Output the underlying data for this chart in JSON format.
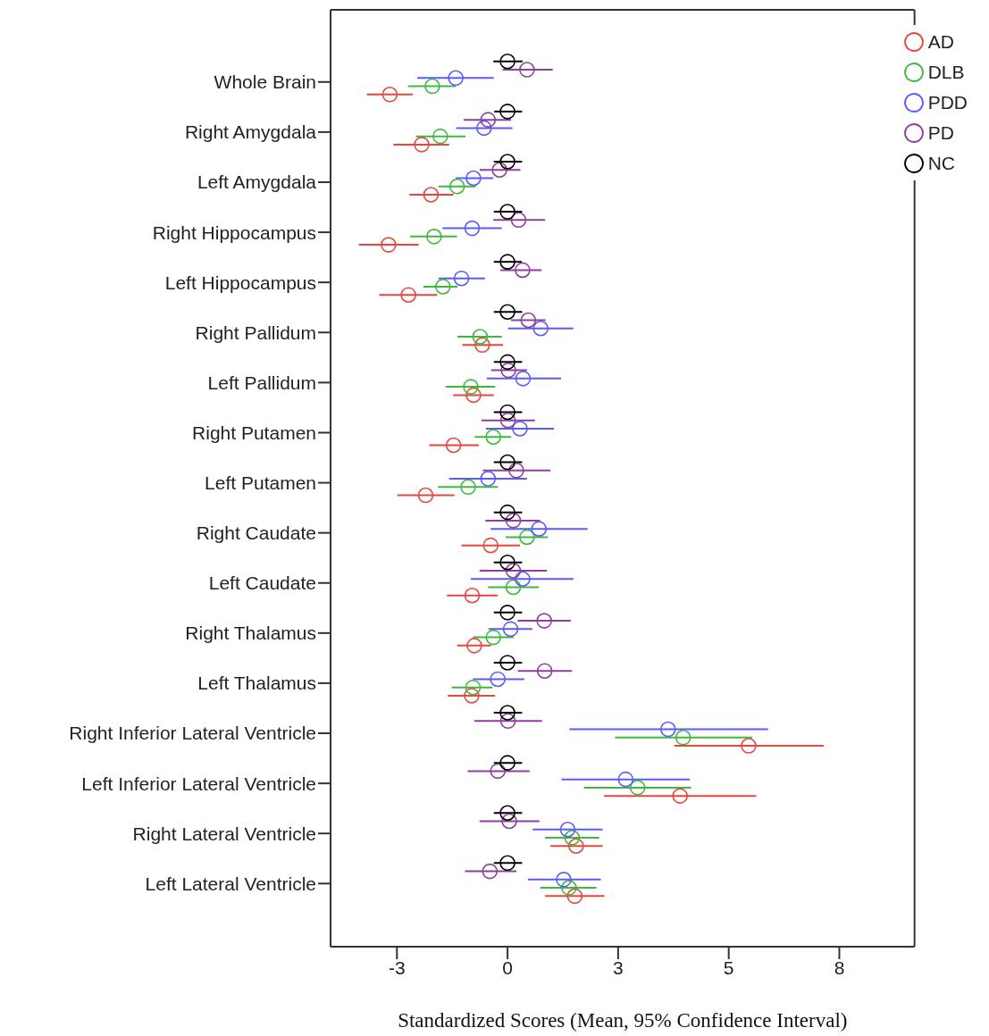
{
  "chart_data": {
    "type": "scatter",
    "orientation": "horizontal",
    "xlabel": "Standardized Scores (Mean, 95% Confidence Interval)",
    "categories": [
      "Whole Brain",
      "Right Amygdala",
      "Left Amygdala",
      "Right Hippocampus",
      "Left Hippocampus",
      "Right Pallidum",
      "Left Pallidum",
      "Right Putamen",
      "Left Putamen",
      "Right Caudate",
      "Left Caudate",
      "Right Thalamus",
      "Left Thalamus",
      "Right Inferior Lateral Ventricle",
      "Left Inferior Lateral Ventricle",
      "Right Lateral Ventricle",
      "Left Lateral Ventricle"
    ],
    "xlim": [
      -4,
      9.2
    ],
    "xticks": [
      {
        "value": -2.5,
        "label": "-3"
      },
      {
        "value": 0,
        "label": "0"
      },
      {
        "value": 2.5,
        "label": "3"
      },
      {
        "value": 5,
        "label": "5"
      },
      {
        "value": 7.5,
        "label": "8"
      }
    ],
    "legend": "top right",
    "marker": "circle",
    "series": [
      {
        "name": "AD",
        "color": "#e8453c",
        "values": [
          -2.66,
          -1.94,
          -1.73,
          -2.69,
          -2.24,
          -0.57,
          -0.77,
          -1.22,
          -1.85,
          -0.38,
          -0.8,
          -0.75,
          -0.81,
          5.45,
          3.9,
          1.55,
          1.52
        ],
        "errors": [
          [
            -3.18,
            -2.14
          ],
          [
            -2.58,
            -1.32
          ],
          [
            -2.22,
            -1.22
          ],
          [
            -3.36,
            -2.01
          ],
          [
            -2.9,
            -1.59
          ],
          [
            -1.02,
            -0.1
          ],
          [
            -1.23,
            -0.31
          ],
          [
            -1.77,
            -0.65
          ],
          [
            -2.49,
            -1.2
          ],
          [
            -1.04,
            0.28
          ],
          [
            -1.37,
            -0.22
          ],
          [
            -1.14,
            -0.37
          ],
          [
            -1.35,
            -0.28
          ],
          [
            3.77,
            7.15
          ],
          [
            2.18,
            5.62
          ],
          [
            0.97,
            2.15
          ],
          [
            0.85,
            2.19
          ]
        ]
      },
      {
        "name": "DLB",
        "color": "#3dba3d",
        "values": [
          -1.7,
          -1.52,
          -1.14,
          -1.66,
          -1.46,
          -0.62,
          -0.83,
          -0.32,
          -0.89,
          0.44,
          0.13,
          -0.32,
          -0.78,
          3.97,
          2.94,
          1.46,
          1.39
        ],
        "errors": [
          [
            -2.25,
            -1.17
          ],
          [
            -2.07,
            -0.95
          ],
          [
            -1.56,
            -0.72
          ],
          [
            -2.2,
            -1.14
          ],
          [
            -1.9,
            -1.13
          ],
          [
            -1.13,
            -0.13
          ],
          [
            -1.4,
            -0.28
          ],
          [
            -0.74,
            0.08
          ],
          [
            -1.57,
            -0.22
          ],
          [
            -0.04,
            0.91
          ],
          [
            -0.44,
            0.71
          ],
          [
            -0.78,
            0.14
          ],
          [
            -1.26,
            -0.34
          ],
          [
            2.43,
            5.53
          ],
          [
            1.73,
            4.15
          ],
          [
            0.85,
            2.07
          ],
          [
            0.74,
            2.01
          ]
        ]
      },
      {
        "name": "PDD",
        "color": "#5a5aff",
        "values": [
          -1.17,
          -0.53,
          -0.77,
          -0.8,
          -1.04,
          0.75,
          0.35,
          0.28,
          -0.44,
          0.71,
          0.34,
          0.07,
          -0.22,
          3.63,
          2.67,
          1.36,
          1.27
        ],
        "errors": [
          [
            -2.04,
            -0.31
          ],
          [
            -1.16,
            0.11
          ],
          [
            -1.17,
            -0.32
          ],
          [
            -1.47,
            -0.13
          ],
          [
            -1.56,
            -0.51
          ],
          [
            0.01,
            1.49
          ],
          [
            -0.47,
            1.21
          ],
          [
            -0.49,
            1.05
          ],
          [
            -1.32,
            0.44
          ],
          [
            -0.38,
            1.81
          ],
          [
            -0.83,
            1.49
          ],
          [
            -0.43,
            0.56
          ],
          [
            -0.78,
            0.38
          ],
          [
            1.4,
            5.89
          ],
          [
            1.22,
            4.12
          ],
          [
            0.57,
            2.15
          ],
          [
            0.46,
            2.11
          ]
        ]
      },
      {
        "name": "PD",
        "color": "#8e3f9e",
        "values": [
          0.44,
          -0.44,
          -0.18,
          0.25,
          0.34,
          0.47,
          0.02,
          0.01,
          0.2,
          0.13,
          0.13,
          0.83,
          0.84,
          0.01,
          -0.22,
          0.04,
          -0.4
        ],
        "errors": [
          [
            -0.11,
            1.02
          ],
          [
            -0.99,
            0.08
          ],
          [
            -0.63,
            0.29
          ],
          [
            -0.32,
            0.85
          ],
          [
            -0.16,
            0.77
          ],
          [
            0.08,
            0.86
          ],
          [
            -0.37,
            0.44
          ],
          [
            -0.59,
            0.62
          ],
          [
            -0.56,
            0.97
          ],
          [
            -0.5,
            0.74
          ],
          [
            -0.63,
            0.89
          ],
          [
            0.23,
            1.43
          ],
          [
            0.23,
            1.46
          ],
          [
            -0.75,
            0.78
          ],
          [
            -0.9,
            0.5
          ],
          [
            -0.63,
            0.72
          ],
          [
            -0.96,
            0.2
          ]
        ]
      },
      {
        "name": "NC",
        "color": "#000000",
        "values": [
          0,
          0,
          0,
          0,
          0,
          0,
          0,
          0,
          0,
          0,
          0,
          0,
          0,
          0,
          0,
          0,
          0
        ],
        "errors": [
          [
            -0.32,
            0.34
          ],
          [
            -0.3,
            0.33
          ],
          [
            -0.31,
            0.33
          ],
          [
            -0.31,
            0.33
          ],
          [
            -0.31,
            0.32
          ],
          [
            -0.31,
            0.33
          ],
          [
            -0.31,
            0.33
          ],
          [
            -0.31,
            0.33
          ],
          [
            -0.31,
            0.33
          ],
          [
            -0.31,
            0.33
          ],
          [
            -0.31,
            0.33
          ],
          [
            -0.31,
            0.33
          ],
          [
            -0.31,
            0.33
          ],
          [
            -0.31,
            0.33
          ],
          [
            -0.31,
            0.33
          ],
          [
            -0.31,
            0.33
          ],
          [
            -0.31,
            0.33
          ]
        ]
      }
    ]
  }
}
